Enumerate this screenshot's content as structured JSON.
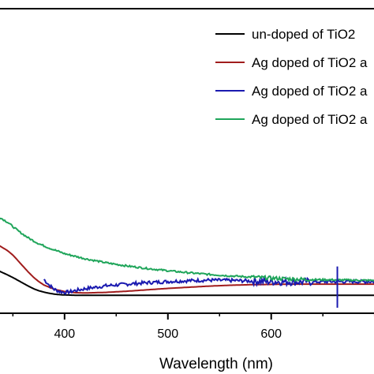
{
  "chart_data": {
    "type": "line",
    "xlabel": "Wavelength (nm)",
    "ylabel": "",
    "xlim": [
      336,
      701
    ],
    "ylim": [
      0,
      1
    ],
    "x_ticks": [
      400,
      500,
      600
    ],
    "x_tick_labels": [
      "400",
      "500",
      "600"
    ],
    "legend_position": "top-right",
    "grid": false,
    "series": [
      {
        "name": "un-doped of TiO2",
        "color": "#000000",
        "noise": 0,
        "x": [
          336,
          345,
          350,
          355,
          360,
          365,
          370,
          375,
          380,
          385,
          390,
          395,
          400,
          410,
          420,
          440,
          460,
          480,
          500,
          520,
          540,
          560,
          580,
          600,
          620,
          640,
          660,
          680,
          701
        ],
        "y": [
          0.08,
          0.065,
          0.056,
          0.046,
          0.036,
          0.026,
          0.017,
          0.01,
          0.005,
          0.001,
          -0.002,
          -0.004,
          -0.005,
          -0.006,
          -0.006,
          -0.006,
          -0.006,
          -0.006,
          -0.006,
          -0.006,
          -0.006,
          -0.006,
          -0.006,
          -0.006,
          -0.006,
          -0.006,
          -0.006,
          -0.006,
          -0.006
        ]
      },
      {
        "name": "Ag doped of TiO2 a",
        "color": "#a01c1c",
        "noise": 0,
        "x": [
          336,
          345,
          350,
          355,
          360,
          365,
          370,
          375,
          380,
          390,
          400,
          410,
          420,
          440,
          460,
          480,
          500,
          520,
          540,
          560,
          580,
          600,
          620,
          640,
          660,
          680,
          701
        ],
        "y": [
          0.17,
          0.15,
          0.135,
          0.115,
          0.095,
          0.075,
          0.057,
          0.042,
          0.03,
          0.015,
          0.007,
          0.003,
          0.002,
          0.004,
          0.008,
          0.013,
          0.018,
          0.022,
          0.026,
          0.029,
          0.031,
          0.032,
          0.033,
          0.033,
          0.033,
          0.033,
          0.033
        ]
      },
      {
        "name": "Ag doped of TiO2 a",
        "color": "#1a1ab0",
        "noise": 0.006,
        "x": [
          380,
          385,
          390,
          395,
          400,
          405,
          410,
          420,
          430,
          440,
          460,
          480,
          500,
          520,
          540,
          560,
          580,
          600,
          620,
          640,
          660,
          680,
          701
        ],
        "y": [
          0.05,
          0.03,
          0.015,
          0.007,
          0.004,
          0.006,
          0.01,
          0.017,
          0.022,
          0.027,
          0.033,
          0.038,
          0.042,
          0.045,
          0.047,
          0.046,
          0.044,
          0.042,
          0.041,
          0.041,
          0.042,
          0.042,
          0.042
        ]
      },
      {
        "name": "Ag doped of TiO2 a",
        "color": "#1fa55a",
        "noise": 0.003,
        "x": [
          336,
          345,
          355,
          365,
          375,
          385,
          400,
          420,
          440,
          460,
          480,
          500,
          520,
          540,
          560,
          580,
          600,
          620,
          640,
          660,
          680,
          701
        ],
        "y": [
          0.27,
          0.25,
          0.22,
          0.195,
          0.175,
          0.16,
          0.14,
          0.122,
          0.108,
          0.097,
          0.088,
          0.08,
          0.073,
          0.067,
          0.062,
          0.058,
          0.054,
          0.051,
          0.049,
          0.048,
          0.047,
          0.046
        ]
      }
    ]
  }
}
